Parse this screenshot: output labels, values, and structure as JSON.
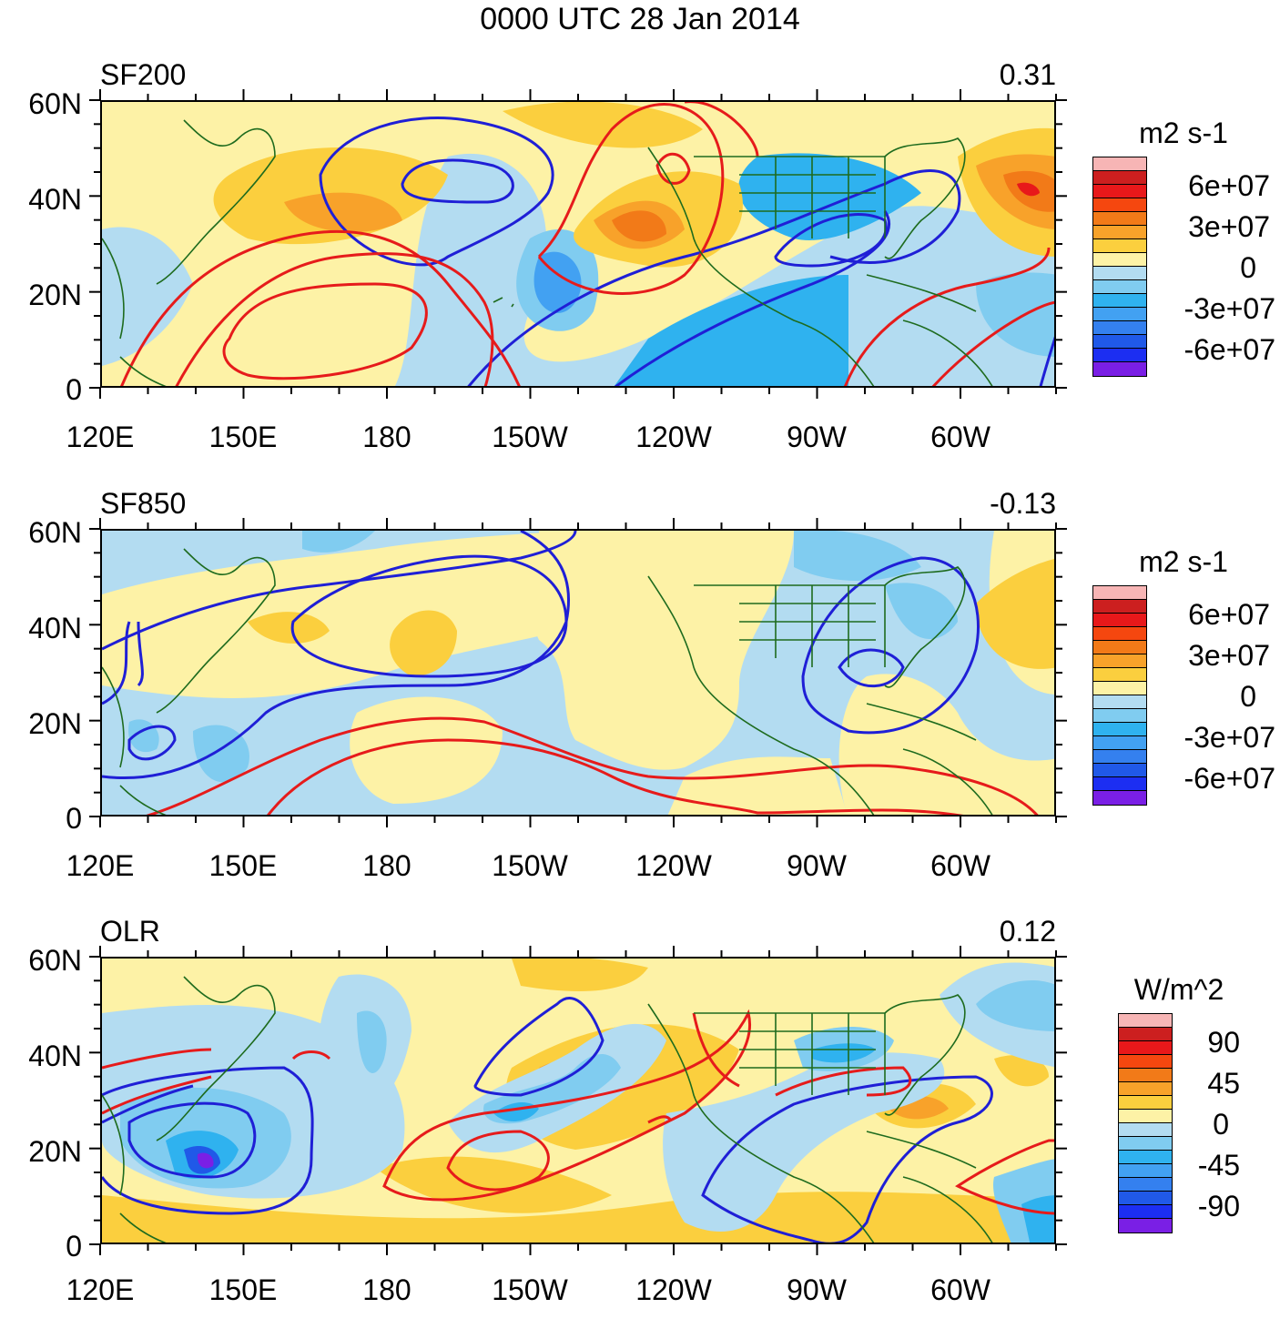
{
  "title": "0000 UTC 28 Jan 2014",
  "panels": [
    {
      "name": "SF200",
      "value": "0.31",
      "units": "m2 s-1",
      "colorbar_labels": [
        "6e+07",
        "3e+07",
        "0",
        "-3e+07",
        "-6e+07"
      ]
    },
    {
      "name": "SF850",
      "value": "-0.13",
      "units": "m2 s-1",
      "colorbar_labels": [
        "6e+07",
        "3e+07",
        "0",
        "-3e+07",
        "-6e+07"
      ]
    },
    {
      "name": "OLR",
      "value": "0.12",
      "units": "W/m^2",
      "colorbar_labels": [
        "90",
        "45",
        "0",
        "-45",
        "-90"
      ]
    }
  ],
  "lat_labels": [
    "60N",
    "40N",
    "20N",
    "0"
  ],
  "lon_labels": [
    "120E",
    "150E",
    "180",
    "150W",
    "120W",
    "90W",
    "60W"
  ],
  "colors": {
    "shading": [
      "#f7b5b5",
      "#cc1f1f",
      "#e8181a",
      "#f5470f",
      "#f27a18",
      "#f8a22a",
      "#fbcf3e",
      "#fdf2a6",
      "#b3dcf1",
      "#80ccf0",
      "#2fb2ef",
      "#42a1f2",
      "#3480ef",
      "#2059e8",
      "#1c2ef2",
      "#7a1fe5"
    ],
    "positive_contour": "#e61b1b",
    "negative_contour": "#1f1fd6",
    "coastline": "#1e6b1e"
  }
}
